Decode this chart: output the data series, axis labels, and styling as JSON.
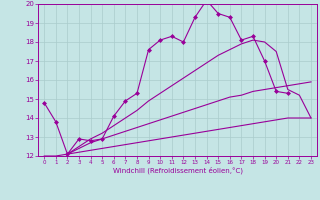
{
  "xlabel": "Windchill (Refroidissement éolien,°C)",
  "xlim": [
    -0.5,
    23.5
  ],
  "ylim": [
    12,
    20
  ],
  "yticks": [
    12,
    13,
    14,
    15,
    16,
    17,
    18,
    19,
    20
  ],
  "xticks": [
    0,
    1,
    2,
    3,
    4,
    5,
    6,
    7,
    8,
    9,
    10,
    11,
    12,
    13,
    14,
    15,
    16,
    17,
    18,
    19,
    20,
    21,
    22,
    23
  ],
  "background_color": "#c5e5e5",
  "line_color": "#990099",
  "grid_color": "#aacccc",
  "line1_x": [
    0,
    1,
    2,
    3,
    4,
    5,
    6,
    7,
    8,
    9,
    10,
    11,
    12,
    13,
    14,
    15,
    16,
    17,
    18,
    19,
    20,
    21
  ],
  "line1_y": [
    14.8,
    13.8,
    12.1,
    12.9,
    12.8,
    12.9,
    14.1,
    14.9,
    15.3,
    17.6,
    18.1,
    18.3,
    18.0,
    19.3,
    20.2,
    19.5,
    19.3,
    18.1,
    18.3,
    17.0,
    15.4,
    15.3
  ],
  "line2_x": [
    2,
    3,
    4,
    5,
    6,
    7,
    8,
    9,
    10,
    11,
    12,
    13,
    14,
    15,
    16,
    17,
    18,
    19,
    20,
    21,
    22,
    23
  ],
  "line2_y": [
    12.1,
    12.5,
    12.9,
    13.2,
    13.6,
    14.0,
    14.4,
    14.9,
    15.3,
    15.7,
    16.1,
    16.5,
    16.9,
    17.3,
    17.6,
    17.9,
    18.1,
    18.0,
    17.5,
    15.5,
    15.2,
    14.0
  ],
  "line3_x": [
    2,
    3,
    4,
    5,
    6,
    7,
    8,
    9,
    10,
    11,
    12,
    13,
    14,
    15,
    16,
    17,
    18,
    19,
    20,
    21,
    22,
    23
  ],
  "line3_y": [
    12.1,
    12.4,
    12.7,
    12.9,
    13.1,
    13.3,
    13.5,
    13.7,
    13.9,
    14.1,
    14.3,
    14.5,
    14.7,
    14.9,
    15.1,
    15.2,
    15.4,
    15.5,
    15.6,
    15.7,
    15.8,
    15.9
  ],
  "line4_x": [
    0,
    1,
    2,
    3,
    4,
    5,
    6,
    7,
    8,
    9,
    10,
    11,
    12,
    13,
    14,
    15,
    16,
    17,
    18,
    19,
    20,
    21,
    22,
    23
  ],
  "line4_y": [
    12.0,
    12.0,
    12.1,
    12.2,
    12.3,
    12.4,
    12.5,
    12.6,
    12.7,
    12.8,
    12.9,
    13.0,
    13.1,
    13.2,
    13.3,
    13.4,
    13.5,
    13.6,
    13.7,
    13.8,
    13.9,
    14.0,
    14.0,
    14.0
  ]
}
